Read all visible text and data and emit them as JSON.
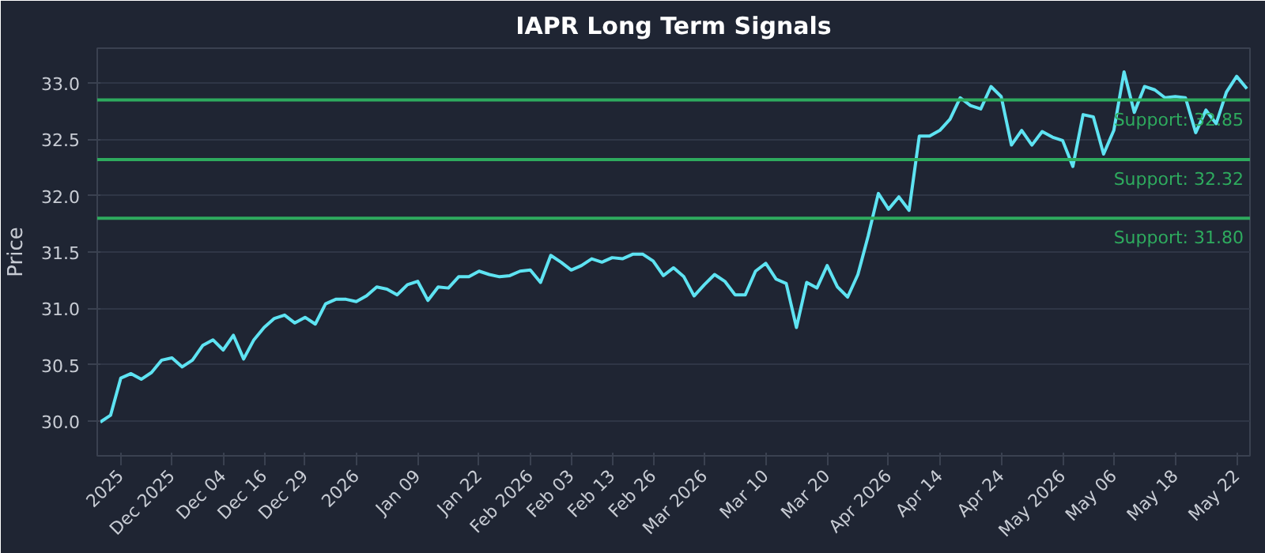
{
  "chart_data": {
    "type": "line",
    "title": "IAPR Long Term Signals",
    "ylabel": "Price",
    "categories": [
      null,
      null,
      "2025",
      null,
      null,
      null,
      null,
      "Dec 2025",
      null,
      null,
      null,
      null,
      "Dec 04",
      null,
      null,
      null,
      "Dec 16",
      null,
      null,
      null,
      "Dec 29",
      null,
      null,
      null,
      null,
      "2026",
      null,
      null,
      null,
      null,
      null,
      "Jan 09",
      null,
      null,
      null,
      null,
      null,
      "Jan 22",
      null,
      null,
      null,
      null,
      "Feb 2026",
      null,
      null,
      null,
      "Feb 03",
      null,
      null,
      null,
      "Feb 13",
      null,
      null,
      null,
      "Feb 26",
      null,
      null,
      null,
      null,
      "Mar 2026",
      null,
      null,
      null,
      null,
      null,
      "Mar 10",
      null,
      null,
      null,
      null,
      null,
      "Mar 20",
      null,
      null,
      null,
      null,
      null,
      "Apr 2026",
      null,
      null,
      null,
      null,
      "Apr 14",
      null,
      null,
      null,
      null,
      null,
      "Apr 24",
      null,
      null,
      null,
      null,
      null,
      "May 2026",
      null,
      null,
      null,
      null,
      "May 06",
      null,
      null,
      null,
      null,
      null,
      "May 18",
      null,
      null,
      null,
      null,
      null,
      "May 22",
      null
    ],
    "series": [
      {
        "color": "#5ee3f2",
        "values": [
          29.99,
          30.05,
          30.38,
          30.42,
          30.37,
          30.43,
          30.54,
          30.56,
          30.48,
          30.54,
          30.67,
          30.72,
          30.63,
          30.76,
          30.55,
          30.72,
          30.83,
          30.91,
          30.94,
          30.87,
          30.92,
          30.86,
          31.04,
          31.08,
          31.08,
          31.06,
          31.11,
          31.19,
          31.17,
          31.12,
          31.21,
          31.24,
          31.07,
          31.19,
          31.18,
          31.28,
          31.28,
          31.33,
          31.3,
          31.28,
          31.29,
          31.33,
          31.34,
          31.23,
          31.47,
          31.41,
          31.34,
          31.38,
          31.44,
          31.41,
          31.45,
          31.44,
          31.48,
          31.48,
          31.42,
          31.29,
          31.36,
          31.28,
          31.11,
          31.21,
          31.3,
          31.24,
          31.12,
          31.12,
          31.33,
          31.4,
          31.26,
          31.22,
          30.83,
          31.23,
          31.18,
          31.38,
          31.19,
          31.1,
          31.3,
          31.64,
          32.02,
          31.88,
          31.99,
          31.87,
          32.53,
          32.53,
          32.58,
          32.68,
          32.87,
          32.8,
          32.77,
          32.97,
          32.88,
          32.45,
          32.58,
          32.45,
          32.57,
          32.52,
          32.49,
          32.26,
          32.72,
          32.7,
          32.37,
          32.58,
          33.1,
          32.74,
          32.97,
          32.94,
          32.87,
          32.88,
          32.87,
          32.56,
          32.76,
          32.64,
          32.92,
          33.06,
          32.95
        ]
      }
    ],
    "ylim": [
      29.69,
      33.31
    ],
    "yticks": [
      {
        "value": 30,
        "label": "30.0"
      },
      {
        "value": 30.5,
        "label": "30.5"
      },
      {
        "value": 31,
        "label": "31.0"
      },
      {
        "value": 31.5,
        "label": "31.5"
      },
      {
        "value": 32,
        "label": "32.0"
      },
      {
        "value": 32.5,
        "label": "32.5"
      },
      {
        "value": 33,
        "label": "33.0"
      }
    ],
    "ref_lines": [
      {
        "axis": "y",
        "value": 32.85,
        "label": "Support: 32.85",
        "color": "#2eaa5e"
      },
      {
        "axis": "y",
        "value": 32.32,
        "label": "Support: 32.32",
        "color": "#2eaa5e"
      },
      {
        "axis": "y",
        "value": 31.8,
        "label": "Support: 31.80",
        "color": "#2eaa5e"
      }
    ],
    "grid": "y",
    "marker": "none",
    "line_style": "solid"
  }
}
